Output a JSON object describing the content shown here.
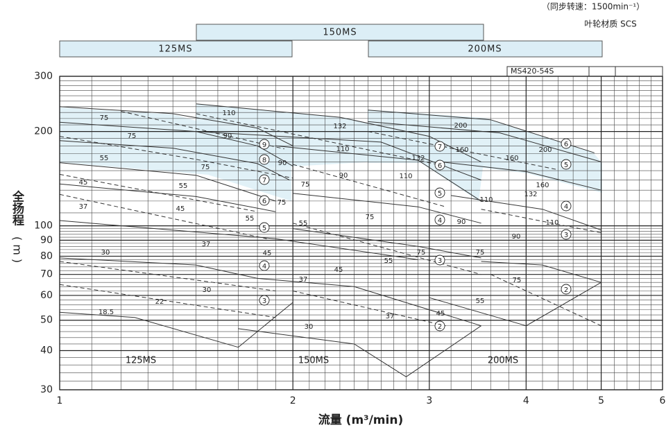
{
  "header": {
    "speed": "（同步转速：1500min⁻¹）",
    "material": "叶轮材质  SCS"
  },
  "model_bars": [
    "150MS",
    "125MS",
    "200MS"
  ],
  "model_tag": "MS420-54S",
  "chart_data": {
    "type": "line",
    "xlabel": "流量 (m³/min)",
    "ylabel": "全扬程",
    "ylabel_unit": "( m )",
    "xscale": "log",
    "yscale": "log",
    "xlim": [
      1,
      6
    ],
    "ylim": [
      30,
      300
    ],
    "xticks": [
      1,
      2,
      3,
      4,
      5,
      6
    ],
    "yticks": [
      30,
      40,
      50,
      60,
      70,
      80,
      90,
      100,
      200,
      300
    ],
    "grid": true,
    "color": "#333333",
    "series": [
      {
        "style": "solid",
        "x": [
          1,
          1.4,
          1.8,
          2
        ],
        "values": [
          240,
          228,
          205,
          180
        ]
      },
      {
        "style": "solid",
        "x": [
          1,
          1.5,
          1.8,
          2
        ],
        "values": [
          214,
          200,
          180,
          155
        ]
      },
      {
        "style": "solid",
        "x": [
          1,
          1.4,
          1.8,
          1.98
        ],
        "values": [
          187,
          177,
          158,
          140
        ]
      },
      {
        "style": "solid",
        "x": [
          1,
          1.5,
          1.9
        ],
        "values": [
          159,
          145,
          120
        ]
      },
      {
        "style": "solid",
        "x": [
          1,
          1.5,
          1.9
        ],
        "values": [
          136,
          124,
          111
        ]
      },
      {
        "style": "solid",
        "x": [
          1,
          1.9,
          2.9
        ],
        "values": [
          104,
          91,
          78
        ]
      },
      {
        "style": "solid",
        "x": [
          1,
          1.5,
          1.8
        ],
        "values": [
          79,
          75,
          68
        ]
      },
      {
        "style": "solid",
        "x": [
          1,
          1.25,
          1.7
        ],
        "values": [
          53,
          51,
          41
        ]
      },
      {
        "style": "solid",
        "x": [
          1.5,
          2.3,
          3,
          3.5
        ],
        "values": [
          245,
          222,
          193,
          160
        ]
      },
      {
        "style": "solid",
        "x": [
          1.5,
          2.6,
          3.5
        ],
        "values": [
          200,
          185,
          140
        ]
      },
      {
        "style": "solid",
        "x": [
          1.9,
          2.9,
          3.5
        ],
        "values": [
          180,
          162,
          120
        ]
      },
      {
        "style": "solid",
        "x": [
          2,
          2.9,
          3.5
        ],
        "values": [
          127,
          115,
          102
        ]
      },
      {
        "style": "solid",
        "x": [
          2,
          2.9,
          3.5
        ],
        "values": [
          98,
          86,
          79
        ]
      },
      {
        "style": "solid",
        "x": [
          1.8,
          2.4,
          3.5
        ],
        "values": [
          68,
          64,
          48
        ]
      },
      {
        "style": "solid",
        "x": [
          1.7,
          2.4,
          2.8
        ],
        "values": [
          47,
          42,
          33
        ]
      },
      {
        "style": "solid",
        "x": [
          2.5,
          3.6,
          4.9
        ],
        "values": [
          234,
          218,
          171
        ]
      },
      {
        "style": "solid",
        "x": [
          2.5,
          3.7,
          5
        ],
        "values": [
          215,
          198,
          160
        ]
      },
      {
        "style": "solid",
        "x": [
          3.1,
          4,
          5
        ],
        "values": [
          160,
          149,
          130
        ]
      },
      {
        "style": "solid",
        "x": [
          3.2,
          4.2,
          5
        ],
        "values": [
          125,
          113,
          97
        ]
      },
      {
        "style": "solid",
        "x": [
          3.5,
          4.2,
          5
        ],
        "values": [
          77,
          75,
          66
        ]
      },
      {
        "style": "solid",
        "x": [
          3,
          4
        ],
        "values": [
          59,
          48
        ]
      },
      {
        "style": "solid",
        "x": [
          1.7,
          2
        ],
        "values": [
          41,
          57
        ]
      },
      {
        "style": "solid",
        "x": [
          2.8,
          3.5
        ],
        "values": [
          33,
          48
        ]
      },
      {
        "style": "solid",
        "x": [
          4,
          5
        ],
        "values": [
          48,
          66
        ]
      },
      {
        "style": "dashed",
        "x": [
          1.2,
          1.95
        ],
        "values": [
          232,
          176
        ]
      },
      {
        "style": "dashed",
        "x": [
          1,
          1.5,
          2
        ],
        "values": [
          193,
          163,
          142
        ]
      },
      {
        "style": "dashed",
        "x": [
          1,
          1.8
        ],
        "values": [
          146,
          111
        ]
      },
      {
        "style": "dashed",
        "x": [
          1,
          1.85
        ],
        "values": [
          126,
          91
        ]
      },
      {
        "style": "dashed",
        "x": [
          1,
          1.9
        ],
        "values": [
          77,
          62
        ]
      },
      {
        "style": "dashed",
        "x": [
          1,
          1.9
        ],
        "values": [
          65,
          51
        ]
      },
      {
        "style": "dashed",
        "x": [
          1.5,
          3.15
        ],
        "values": [
          228,
          155
        ]
      },
      {
        "style": "dashed",
        "x": [
          2,
          3.15
        ],
        "values": [
          157,
          115
        ]
      },
      {
        "style": "dashed",
        "x": [
          2,
          3.5
        ],
        "values": [
          102,
          70
        ]
      },
      {
        "style": "dashed",
        "x": [
          2,
          3.15
        ],
        "values": [
          62,
          48
        ]
      },
      {
        "style": "dashed",
        "x": [
          2.5,
          4.4
        ],
        "values": [
          200,
          151
        ]
      },
      {
        "style": "dashed",
        "x": [
          3.5,
          5
        ],
        "values": [
          113,
          95
        ]
      },
      {
        "style": "dashed",
        "x": [
          3.6,
          5
        ],
        "values": [
          70,
          48
        ]
      }
    ],
    "power_labels": [
      "75",
      "75",
      "55",
      "45",
      "37",
      "75",
      "55",
      "45",
      "55",
      "37",
      "45",
      "30",
      "30",
      "22",
      "18.5",
      "110",
      "90",
      "90",
      "75",
      "75",
      "55",
      "132",
      "110",
      "90",
      "75",
      "55",
      "45",
      "37",
      "30",
      "37",
      "132",
      "110",
      "160",
      "90",
      "75",
      "45",
      "200",
      "200",
      "160",
      "160",
      "132",
      "110",
      "110",
      "90",
      "75",
      "75",
      "55"
    ],
    "stage_labels": [
      "9",
      "8",
      "7",
      "6",
      "5",
      "4",
      "3",
      "7",
      "6",
      "5",
      "4",
      "3",
      "2",
      "6",
      "5",
      "4",
      "3",
      "2"
    ],
    "group_labels": [
      "125MS",
      "150MS",
      "200MS"
    ]
  }
}
